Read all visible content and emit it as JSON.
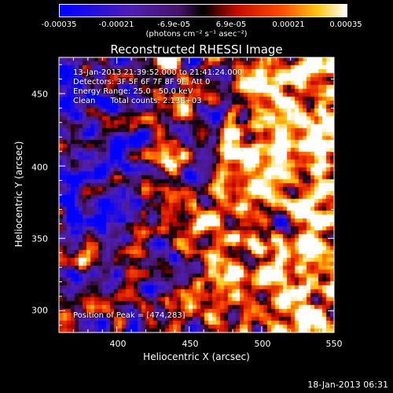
{
  "colorbar": {
    "tick_labels": [
      "-0.00035",
      "-0.00021",
      "-6.9e-05",
      "6.9e-05",
      "0.00021",
      "0.00035"
    ],
    "units": "(photons cm⁻² s⁻¹ asec⁻²)",
    "range": [
      -0.00035,
      0.00035
    ]
  },
  "chart_data": {
    "type": "heatmap",
    "title": "Reconstructed RHESSI Image",
    "xlabel": "Heliocentric X (arcsec)",
    "ylabel": "Heliocentric Y (arcsec)",
    "xlim": [
      360,
      550
    ],
    "ylim": [
      285,
      475
    ],
    "xticks": [
      400,
      450,
      500,
      550
    ],
    "yticks": [
      300,
      350,
      400,
      450
    ],
    "annotations": [
      "13-Jan-2013 21:39:52.000 to 21:41:24.000",
      "Detectors: 3F 5F 6F 7F 8F 9F, Att 0",
      "Energy Range: 25.0 - 50.0 keV",
      "Clean      Total counts: 2.13E+03"
    ],
    "peak_label": "Position of Peak = [474,283]",
    "peak": [
      474,
      283
    ],
    "colormap": "rhessi-blue-purple-red-yellow-white"
  },
  "footer": {
    "date": "18-Jan-2013 06:31"
  }
}
